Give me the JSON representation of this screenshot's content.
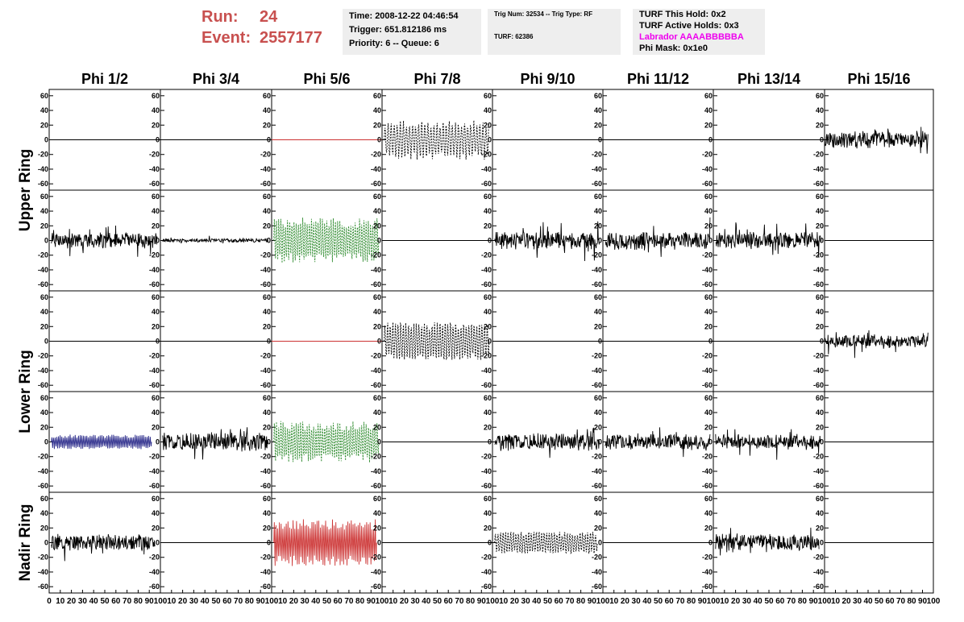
{
  "header": {
    "run_label": "Run:",
    "run_value": "24",
    "event_label": "Event:",
    "event_value": "2557177",
    "time": "Time: 2008-12-22 04:46:54",
    "trigger": "Trigger: 651.812186 ms",
    "priority": "Priority: 6 -- Queue: 6",
    "trig_num": "Trig Num: 32534 -- Trig Type: RF",
    "turf": "TURF: 62386",
    "turf_hold": "TURF This Hold: 0x2",
    "turf_active": "TURF Active Holds: 0x3",
    "labrador": "Labrador AAAABBBBBA",
    "phi_mask": "Phi Mask: 0x1e0"
  },
  "chart_data": {
    "type": "line",
    "columns": [
      "Phi 1/2",
      "Phi 3/4",
      "Phi 5/6",
      "Phi 7/8",
      "Phi 9/10",
      "Phi 11/12",
      "Phi 13/14",
      "Phi 15/16"
    ],
    "ring_labels": [
      "Upper Ring",
      "Lower Ring",
      "Nadir Ring"
    ],
    "row_rings": [
      0,
      0,
      1,
      1,
      2
    ],
    "ylim": [
      -62,
      62
    ],
    "xlim": [
      0,
      100
    ],
    "y_ticks": [
      -60,
      -40,
      -20,
      0,
      20,
      40,
      60
    ],
    "x_ticks": [
      0,
      10,
      20,
      30,
      40,
      50,
      60,
      70,
      80,
      90,
      100
    ],
    "colors": {
      "header": "#c8504f",
      "labrador": "#ee00ee"
    },
    "panels": [
      [
        {
          "style": "flat",
          "color": "#000000"
        },
        {
          "style": "flat",
          "color": "#000000"
        },
        {
          "style": "flat",
          "color": "#cc3333"
        },
        {
          "style": "wave",
          "color": "#000000",
          "amp": 28,
          "dashed": true,
          "period": 7,
          "seed": 11
        },
        {
          "style": "flat",
          "color": "#000000"
        },
        {
          "style": "flat",
          "color": "#000000"
        },
        {
          "style": "flat",
          "color": "#000000"
        },
        {
          "style": "noise",
          "color": "#000000",
          "amp": 13,
          "seed": 12,
          "start": 0,
          "end": 95
        }
      ],
      [
        {
          "style": "noise",
          "color": "#000000",
          "amp": 12,
          "seed": 21
        },
        {
          "style": "noise",
          "color": "#000000",
          "amp": 3,
          "seed": 22
        },
        {
          "style": "wave",
          "color": "#2e8b2e",
          "amp": 33,
          "dashed": true,
          "period": 5,
          "seed": 23
        },
        {
          "style": "flat",
          "color": "#000000"
        },
        {
          "style": "noise",
          "color": "#000000",
          "amp": 13,
          "seed": 25
        },
        {
          "style": "noise",
          "color": "#000000",
          "amp": 14,
          "seed": 26
        },
        {
          "style": "noise",
          "color": "#000000",
          "amp": 12,
          "seed": 27
        },
        {
          "style": "flat",
          "color": "#000000"
        }
      ],
      [
        {
          "style": "flat",
          "color": "#000000"
        },
        {
          "style": "flat",
          "color": "#000000"
        },
        {
          "style": "flat",
          "color": "#cc3333"
        },
        {
          "style": "wave",
          "color": "#000000",
          "amp": 30,
          "dashed": true,
          "period": 6,
          "seed": 34
        },
        {
          "style": "flat",
          "color": "#000000"
        },
        {
          "style": "flat",
          "color": "#000000"
        },
        {
          "style": "flat",
          "color": "#000000"
        },
        {
          "style": "noise",
          "color": "#000000",
          "amp": 10,
          "seed": 38,
          "start": 0,
          "end": 95
        }
      ],
      [
        {
          "style": "wave",
          "color": "#2a2a8a",
          "amp": 10,
          "dashed": false,
          "period": 4,
          "seed": 41,
          "end": 92
        },
        {
          "style": "noise",
          "color": "#000000",
          "amp": 14,
          "seed": 42
        },
        {
          "style": "wave",
          "color": "#2e8b2e",
          "amp": 30,
          "dashed": true,
          "period": 5,
          "seed": 43
        },
        {
          "style": "flat",
          "color": "#000000"
        },
        {
          "style": "noise",
          "color": "#000000",
          "amp": 13,
          "seed": 45
        },
        {
          "style": "noise",
          "color": "#000000",
          "amp": 12,
          "seed": 46
        },
        {
          "style": "noise",
          "color": "#000000",
          "amp": 11,
          "seed": 47
        },
        {
          "style": "flat",
          "color": "#000000"
        }
      ],
      [
        {
          "style": "noise",
          "color": "#000000",
          "amp": 12,
          "seed": 51,
          "end": 95
        },
        {
          "style": "flat",
          "color": "#000000"
        },
        {
          "style": "wave",
          "color": "#cc3333",
          "amp": 32,
          "dashed": false,
          "period": 4,
          "seed": 53,
          "end": 95
        },
        {
          "style": "flat",
          "color": "#000000"
        },
        {
          "style": "wave",
          "color": "#000000",
          "amp": 17,
          "dashed": true,
          "period": 6,
          "seed": 55,
          "end": 95
        },
        {
          "style": "flat",
          "color": "#000000"
        },
        {
          "style": "noise",
          "color": "#000000",
          "amp": 13,
          "seed": 57,
          "end": 95
        },
        {
          "style": "flat",
          "color": "#000000"
        }
      ]
    ]
  }
}
